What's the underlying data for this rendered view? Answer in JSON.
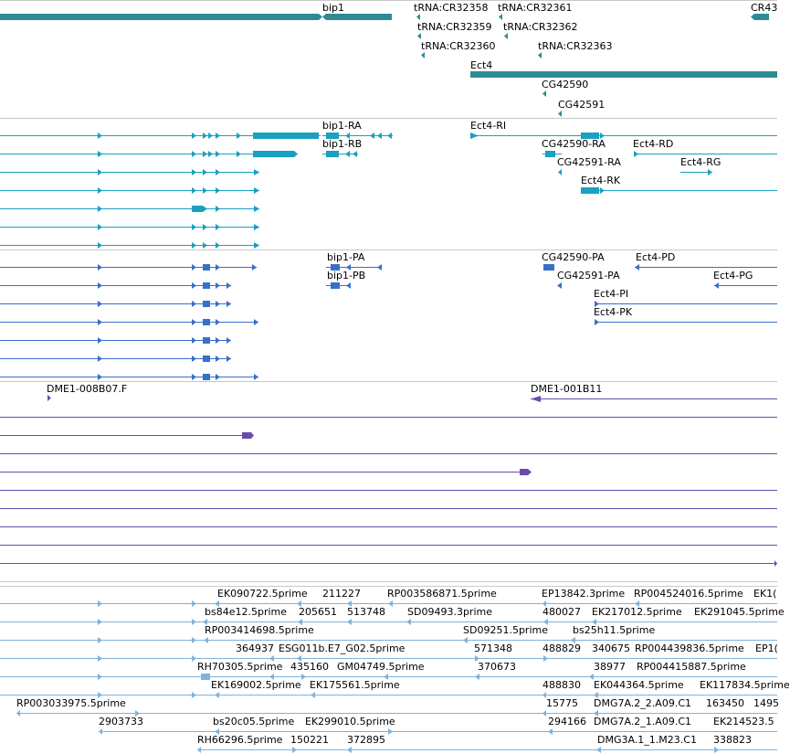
{
  "colors": {
    "gene_teal": "#2e8b93",
    "transcript_teal": "#1aa0c0",
    "protein_blue": "#3a6fc8",
    "clone_purple": "#6b4bab",
    "est_lightblue": "#7fb3dc",
    "separator": "#c8c8c8"
  },
  "tracks": {
    "genes": {
      "labels": {
        "bip1": "bip1",
        "trna_cr32358": "tRNA:CR32358",
        "trna_cr32361": "tRNA:CR32361",
        "trna_cr32359": "tRNA:CR32359",
        "trna_cr32362": "tRNA:CR32362",
        "trna_cr32360": "tRNA:CR32360",
        "trna_cr32363": "tRNA:CR32363",
        "cr43": "CR43",
        "ect4": "Ect4",
        "cg42590": "CG42590",
        "cg42591": "CG42591"
      }
    },
    "transcripts": {
      "labels": {
        "bip1_ra": "bip1-RA",
        "bip1_rb": "bip1-RB",
        "ect4_ri": "Ect4-RI",
        "cg42590_ra": "CG42590-RA",
        "ect4_rd": "Ect4-RD",
        "cg42591_ra": "CG42591-RA",
        "ect4_rg": "Ect4-RG",
        "ect4_rk": "Ect4-RK"
      }
    },
    "proteins": {
      "labels": {
        "bip1_pa": "bip1-PA",
        "bip1_pb": "bip1-PB",
        "cg42590_pa": "CG42590-PA",
        "ect4_pd": "Ect4-PD",
        "cg42591_pa": "CG42591-PA",
        "ect4_pg": "Ect4-PG",
        "ect4_pi": "Ect4-PI",
        "ect4_pk": "Ect4-PK"
      }
    },
    "clones": {
      "labels": {
        "dme1_008b07": "DME1-008B07.F",
        "dme1_001b11": "DME1-001B11"
      }
    },
    "ests": {
      "labels": {
        "ek090722": "EK090722.5prime",
        "n211227": "211227",
        "rp003586871": "RP003586871.5prime",
        "ep13842": "EP13842.3prime",
        "rp004524016": "RP004524016.5prime",
        "ek1": "EK1(",
        "bs84e12": "bs84e12.5prime",
        "n205651": "205651",
        "n513748": "513748",
        "sd09493": "SD09493.3prime",
        "n480027": "480027",
        "ek217012": "EK217012.5prime",
        "ek291045": "EK291045.5prime",
        "rp003414698": "RP003414698.5prime",
        "sd09251": "SD09251.5prime",
        "bs25h11": "bs25h11.5prime",
        "n364937": "364937",
        "esg011b": "ESG011b.E7_G02.5prime",
        "n571348": "571348",
        "n488829": "488829",
        "n340675": "340675",
        "rp004439836": "RP004439836.5prime",
        "ep1": "EP1(",
        "rh70305": "RH70305.5prime",
        "n435160": "435160",
        "gm04749": "GM04749.5prime",
        "n370673": "370673",
        "n38977": "38977",
        "rp004415887": "RP004415887.5prime",
        "ek169002": "EK169002.5prime",
        "ek175561": "EK175561.5prime",
        "n488830": "488830",
        "ek044364": "EK044364.5prime",
        "ek117834": "EK117834.5prime",
        "rp003033975": "RP003033975.5prime",
        "n15775": "15775",
        "dmg7a_2_2": "DMG7A.2_2.A09.C1",
        "n163450": "163450",
        "n1495": "1495",
        "n2903733": "2903733",
        "bs20c05": "bs20c05.5prime",
        "ek299010": "EK299010.5prime",
        "n294166": "294166",
        "dmg7a_2_1": "DMG7A.2_1.A09.C1",
        "ek214523": "EK214523.5",
        "rh66296": "RH66296.5prime",
        "n150221": "150221",
        "n372895": "372895",
        "dmg3a": "DMG3A.1_1.M23.C1",
        "n338823": "338823"
      }
    }
  }
}
